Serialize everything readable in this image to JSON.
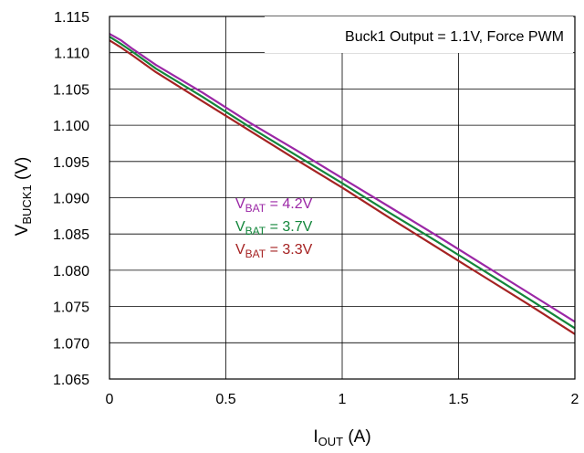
{
  "chart_data": {
    "type": "line",
    "annotation": "Buck1 Output = 1.1V, Force PWM",
    "ylabel": {
      "main": "V",
      "sub": "BUCK1",
      "suffix": " (V)"
    },
    "xlabel": {
      "main": "I",
      "sub": "OUT",
      "suffix": " (A)"
    },
    "xlim": [
      0,
      2
    ],
    "ylim": [
      1.065,
      1.115
    ],
    "xticks": [
      0,
      0.5,
      1,
      1.5,
      2
    ],
    "xtick_labels": [
      "0",
      "0.5",
      "1",
      "1.5",
      "2"
    ],
    "yticks": [
      1.065,
      1.07,
      1.075,
      1.08,
      1.085,
      1.09,
      1.095,
      1.1,
      1.105,
      1.11,
      1.115
    ],
    "ytick_labels": [
      "1.065",
      "1.070",
      "1.075",
      "1.080",
      "1.085",
      "1.090",
      "1.095",
      "1.100",
      "1.105",
      "1.110",
      "1.115"
    ],
    "grid": true,
    "legend_placement": "center-left",
    "series": [
      {
        "name": "VBAT = 4.2V",
        "label_main": "V",
        "label_sub": "BAT",
        "label_suffix": " = 4.2V",
        "color": "#9b27a6",
        "x": [
          0,
          0.05,
          0.1,
          0.2,
          0.4,
          0.6,
          0.8,
          1.0,
          1.2,
          1.4,
          1.6,
          1.8,
          2.0
        ],
        "y": [
          1.1126,
          1.1117,
          1.1105,
          1.1083,
          1.1045,
          1.1004,
          1.0966,
          1.0927,
          1.0888,
          1.0849,
          1.0809,
          1.0769,
          1.0729
        ]
      },
      {
        "name": "VBAT = 3.7V",
        "label_main": "V",
        "label_sub": "BAT",
        "label_suffix": " = 3.7V",
        "color": "#13863b",
        "x": [
          0,
          0.05,
          0.1,
          0.2,
          0.4,
          0.6,
          0.8,
          1.0,
          1.2,
          1.4,
          1.6,
          1.8,
          2.0
        ],
        "y": [
          1.1122,
          1.1112,
          1.1101,
          1.1078,
          1.1039,
          1.0998,
          1.0959,
          1.092,
          1.088,
          1.0841,
          1.0801,
          1.0761,
          1.072
        ]
      },
      {
        "name": "VBAT = 3.3V",
        "label_main": "V",
        "label_sub": "BAT",
        "label_suffix": " = 3.3V",
        "color": "#a52222",
        "x": [
          0,
          0.05,
          0.1,
          0.2,
          0.4,
          0.6,
          0.8,
          1.0,
          1.2,
          1.4,
          1.6,
          1.8,
          2.0
        ],
        "y": [
          1.1117,
          1.1107,
          1.1096,
          1.1073,
          1.1033,
          1.0993,
          1.0953,
          1.0914,
          1.0873,
          1.0833,
          1.0793,
          1.0753,
          1.0712
        ]
      }
    ]
  }
}
